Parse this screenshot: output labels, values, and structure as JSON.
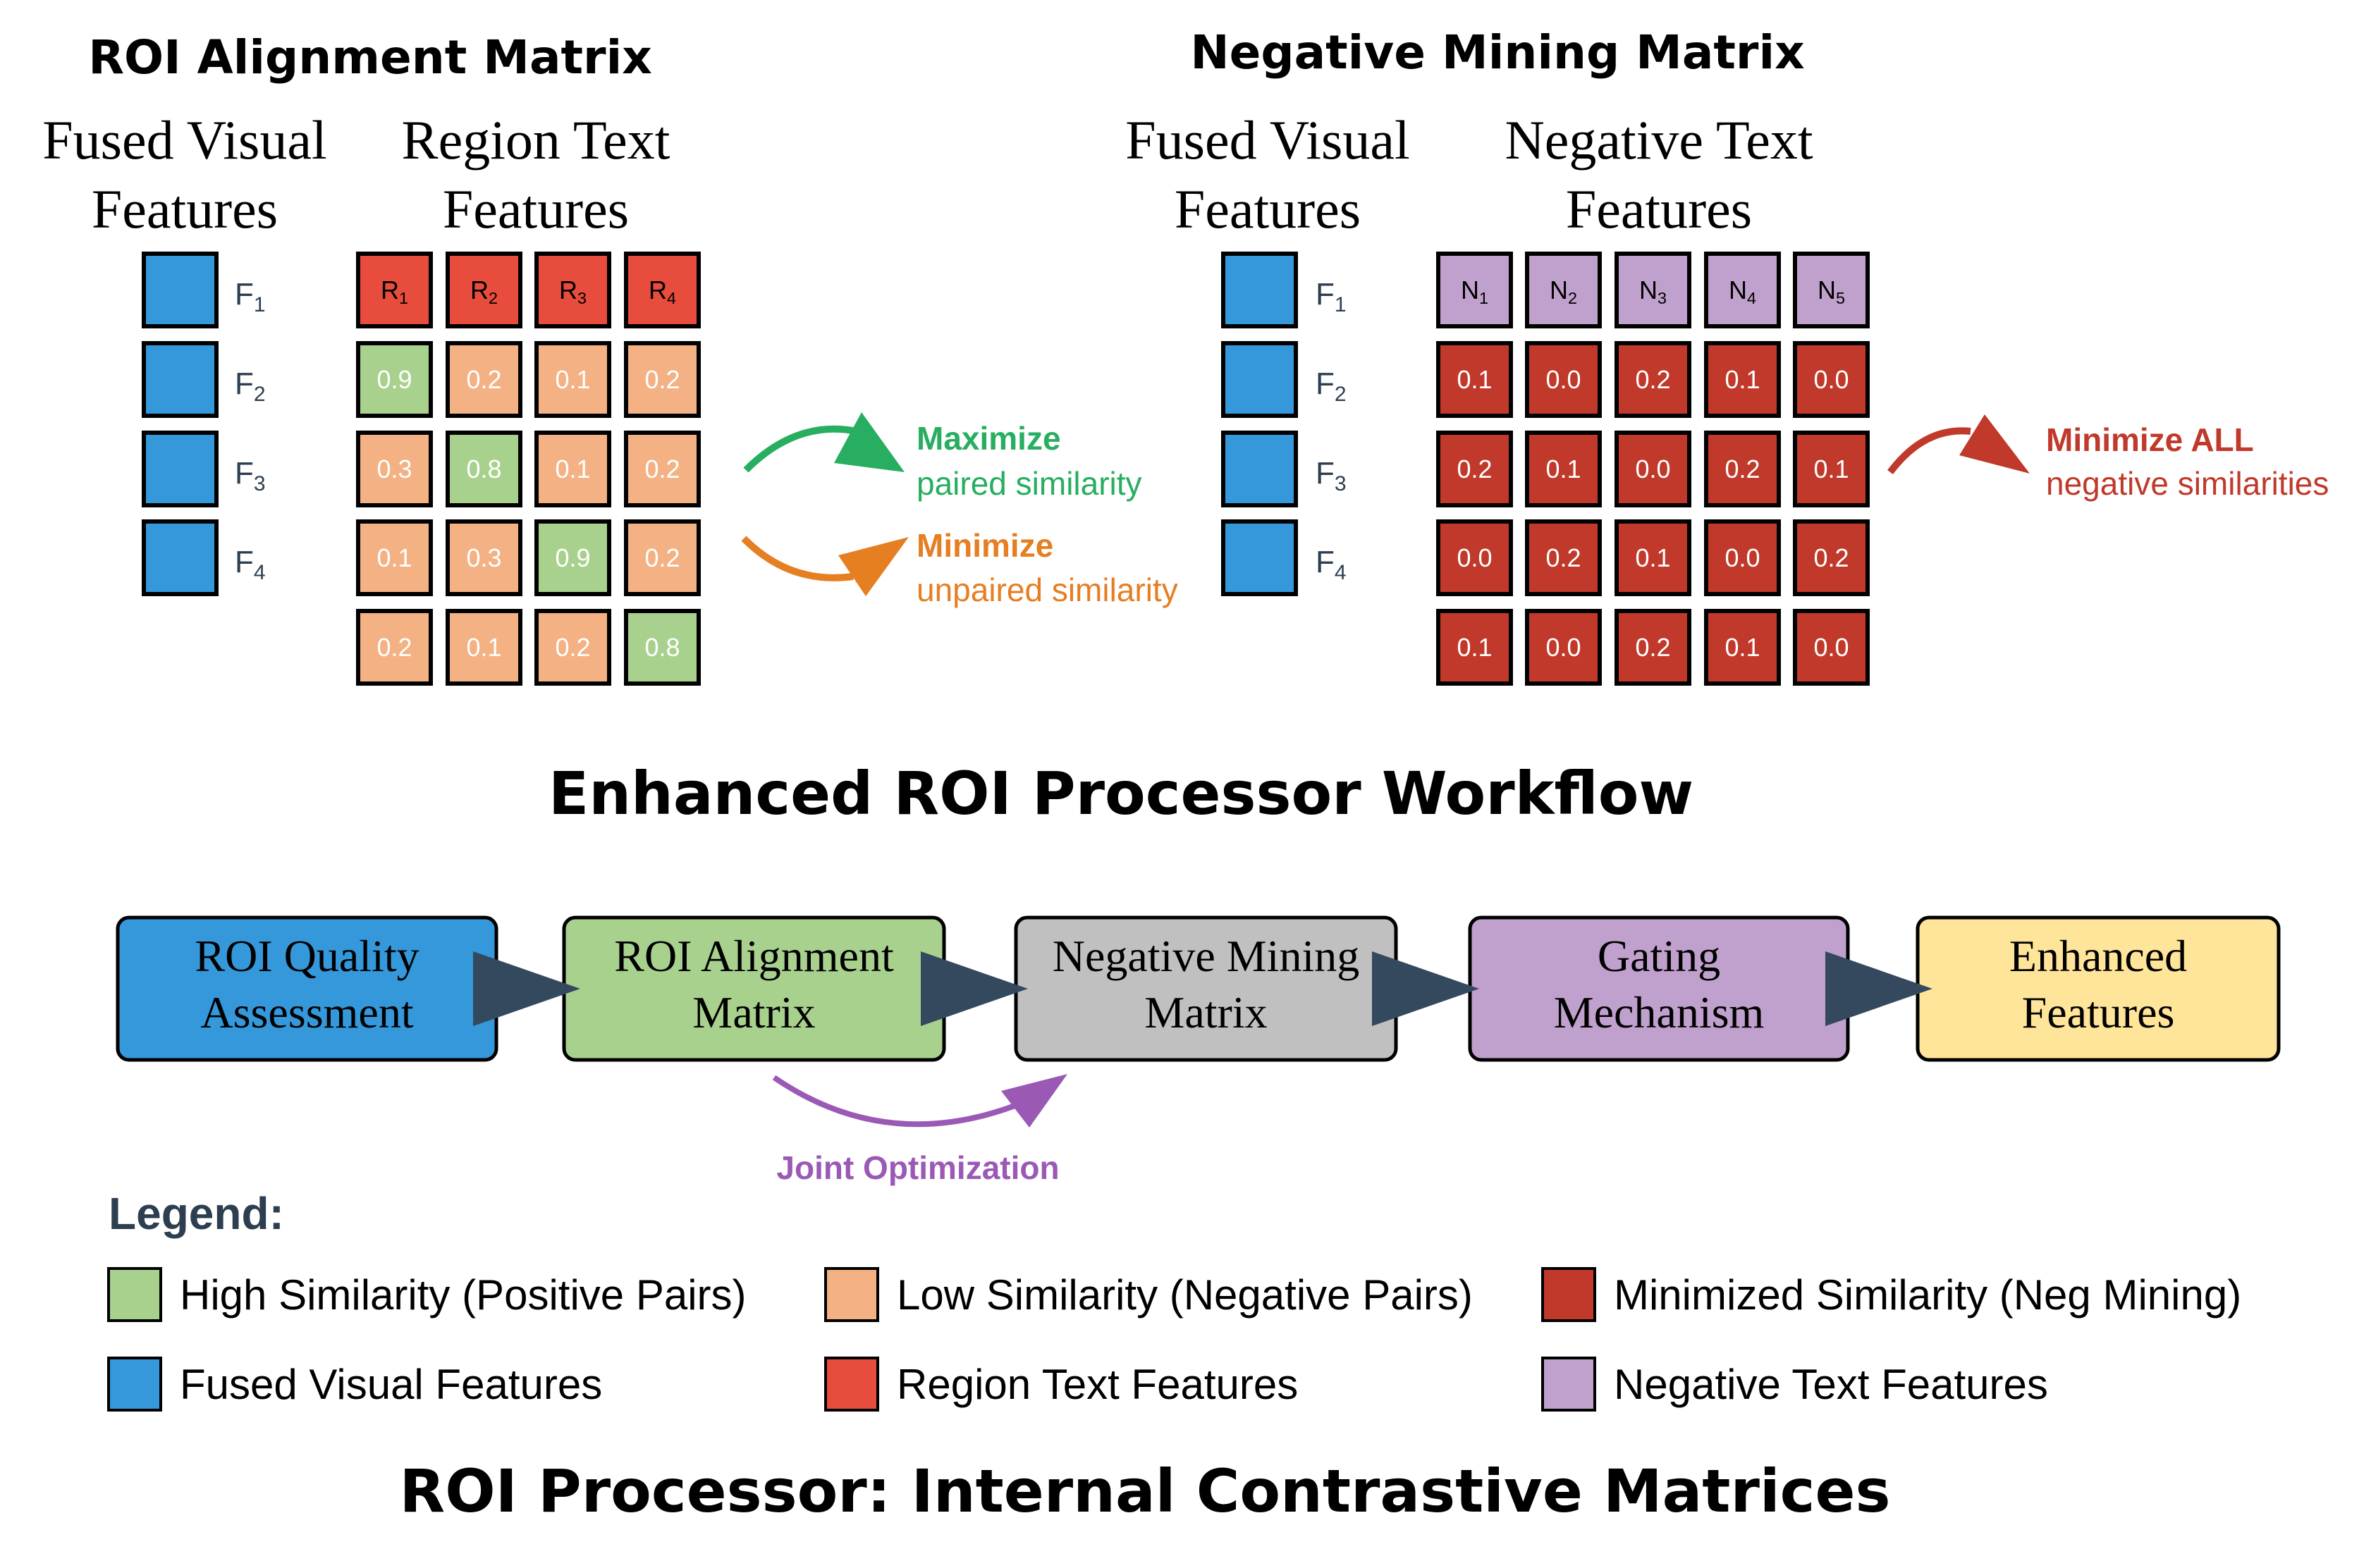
{
  "colors": {
    "blue": "#3498db",
    "red": "#e74c3c",
    "green": "#a9d18e",
    "peach": "#f4b183",
    "darkred": "#c0392b",
    "purple": "#c0a0cc",
    "gray": "#c0c0c0",
    "yellow": "#ffe599",
    "arrow": "#34495e",
    "max": "#27ae60",
    "min": "#e67e22",
    "joint": "#9b59b6"
  },
  "alignment": {
    "title": "ROI Alignment Matrix",
    "visual_label": [
      "Fused Visual",
      "Features"
    ],
    "text_label": [
      "Region Text",
      "Features"
    ],
    "rows": [
      "F",
      "F",
      "F",
      "F"
    ],
    "row_subs": [
      "1",
      "2",
      "3",
      "4"
    ],
    "headers": [
      "R",
      "R",
      "R",
      "R"
    ],
    "header_subs": [
      "1",
      "2",
      "3",
      "4"
    ],
    "values": [
      [
        "0.9",
        "0.2",
        "0.1",
        "0.2"
      ],
      [
        "0.3",
        "0.8",
        "0.1",
        "0.2"
      ],
      [
        "0.1",
        "0.3",
        "0.9",
        "0.2"
      ],
      [
        "0.2",
        "0.1",
        "0.2",
        "0.8"
      ]
    ],
    "maximize": {
      "title": "Maximize",
      "sub": "paired similarity"
    },
    "minimize": {
      "title": "Minimize",
      "sub": "unpaired similarity"
    }
  },
  "negative": {
    "title": "Negative Mining Matrix",
    "visual_label": [
      "Fused Visual",
      "Features"
    ],
    "text_label": [
      "Negative Text",
      "Features"
    ],
    "rows": [
      "F",
      "F",
      "F",
      "F"
    ],
    "row_subs": [
      "1",
      "2",
      "3",
      "4"
    ],
    "headers": [
      "N",
      "N",
      "N",
      "N",
      "N"
    ],
    "header_subs": [
      "1",
      "2",
      "3",
      "4",
      "5"
    ],
    "values": [
      [
        "0.1",
        "0.0",
        "0.2",
        "0.1",
        "0.0"
      ],
      [
        "0.2",
        "0.1",
        "0.0",
        "0.2",
        "0.1"
      ],
      [
        "0.0",
        "0.2",
        "0.1",
        "0.0",
        "0.2"
      ],
      [
        "0.1",
        "0.0",
        "0.2",
        "0.1",
        "0.0"
      ]
    ],
    "minimize_all": {
      "title": "Minimize ALL",
      "sub": "negative similarities"
    }
  },
  "workflow": {
    "title": "Enhanced ROI Processor Workflow",
    "steps": [
      {
        "lines": [
          "ROI Quality",
          "Assessment"
        ],
        "color": "#3498db"
      },
      {
        "lines": [
          "ROI Alignment",
          "Matrix"
        ],
        "color": "#a9d18e"
      },
      {
        "lines": [
          "Negative Mining",
          "Matrix"
        ],
        "color": "#c0c0c0"
      },
      {
        "lines": [
          "Gating",
          "Mechanism"
        ],
        "color": "#c0a0cc"
      },
      {
        "lines": [
          "Enhanced",
          "Features"
        ],
        "color": "#ffe599"
      }
    ],
    "joint": "Joint Optimization"
  },
  "legend": {
    "title": "Legend:",
    "items": [
      {
        "label": "High Similarity (Positive Pairs)",
        "color": "#a9d18e"
      },
      {
        "label": "Low Similarity (Negative Pairs)",
        "color": "#f4b183"
      },
      {
        "label": "Minimized Similarity (Neg Mining)",
        "color": "#c0392b"
      },
      {
        "label": "Fused Visual Features",
        "color": "#3498db"
      },
      {
        "label": "Region Text Features",
        "color": "#e74c3c"
      },
      {
        "label": "Negative Text Features",
        "color": "#c0a0cc"
      }
    ]
  },
  "footer_title": "ROI Processor: Internal Contrastive Matrices"
}
